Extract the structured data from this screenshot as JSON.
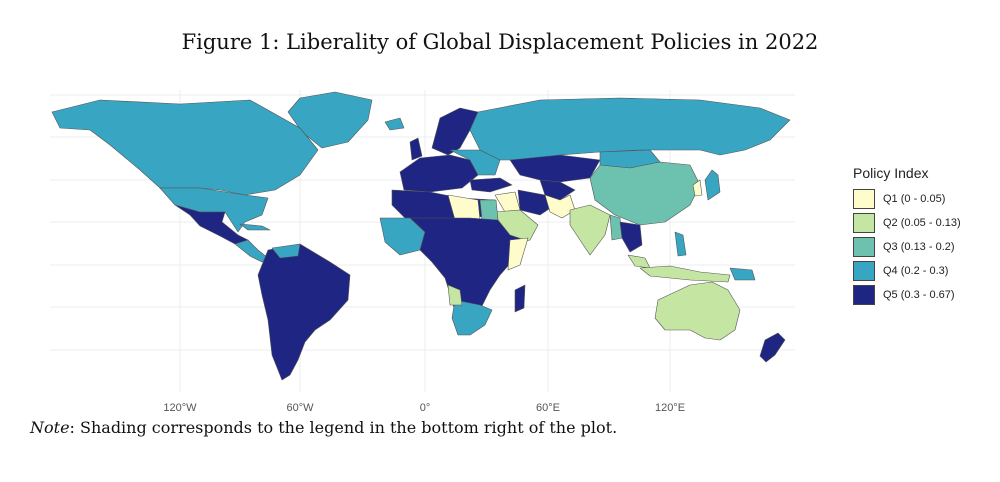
{
  "figure": {
    "title": "Figure 1: Liberality of Global Displacement Policies in 2022"
  },
  "legend": {
    "title": "Policy Index",
    "items": [
      {
        "label": "Q1 (0 - 0.05)",
        "color": "#fffccc"
      },
      {
        "label": "Q2 (0.05 - 0.13)",
        "color": "#c5e6a3"
      },
      {
        "label": "Q3 (0.13 - 0.2)",
        "color": "#6cc2ae"
      },
      {
        "label": "Q4 (0.2 - 0.3)",
        "color": "#38a6c2"
      },
      {
        "label": "Q5 (0.3 - 0.67)",
        "color": "#1f2583"
      }
    ]
  },
  "axis": {
    "x_ticks": [
      "120°W",
      "60°W",
      "0°",
      "60°E",
      "120°E"
    ]
  },
  "note": {
    "prefix": "Note",
    "text": ": Shading corresponds to the legend in the bottom right of the plot."
  }
}
